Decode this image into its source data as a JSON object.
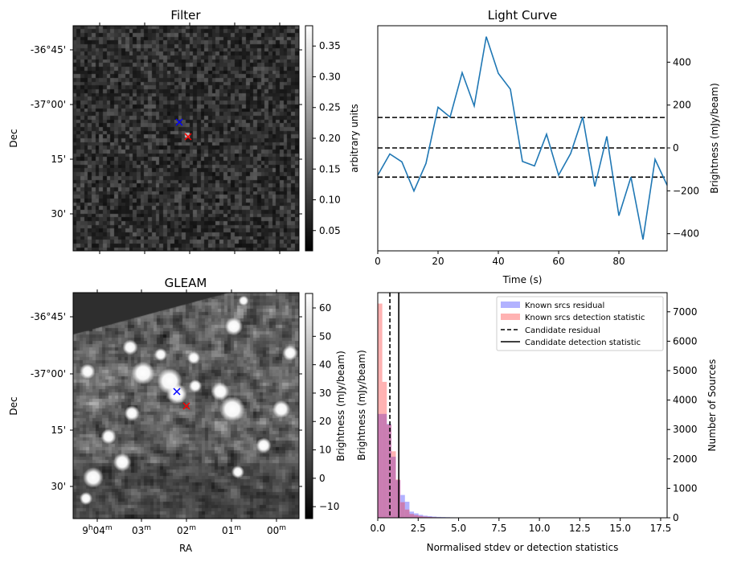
{
  "chart_data": [
    {
      "type": "heatmap",
      "title": "Filter",
      "xlabel": "",
      "ylabel": "Dec",
      "yticks": [
        "-36°45'",
        "-37°00'",
        "15'",
        "30'"
      ],
      "colorbar": {
        "label": "arbitrary units",
        "ticks": [
          "0.05",
          "0.10",
          "0.15",
          "0.20",
          "0.25",
          "0.30",
          "0.35"
        ],
        "range": [
          0.017,
          0.383
        ],
        "colormap": "gray"
      },
      "markers": [
        {
          "symbol": "x",
          "color": "#0000ff"
        },
        {
          "symbol": "x",
          "color": "#ff0000"
        }
      ]
    },
    {
      "type": "line",
      "title": "Light Curve",
      "xlabel": "Time (s)",
      "ylabel": "Brightness (mJy/beam)",
      "xlim": [
        0,
        96
      ],
      "ylim": [
        -480,
        570
      ],
      "xticks": [
        "0",
        "20",
        "40",
        "60",
        "80"
      ],
      "yticks": [
        "400",
        "200",
        "0",
        "-200",
        "-400"
      ],
      "series": [
        {
          "name": "light curve",
          "color": "#1f77b4",
          "x": [
            0,
            4,
            8,
            12,
            16,
            20,
            24,
            28,
            32,
            36,
            40,
            44,
            48,
            52,
            56,
            60,
            64,
            68,
            72,
            76,
            80,
            84,
            88,
            92,
            96
          ],
          "y": [
            -127,
            -28,
            -65,
            -201,
            -72,
            190,
            144,
            351,
            196,
            519,
            348,
            274,
            -63,
            -84,
            64,
            -127,
            -26,
            144,
            -180,
            54,
            -316,
            -136,
            -427,
            -53,
            -174
          ]
        }
      ],
      "hlines": [
        142,
        0,
        -136
      ]
    },
    {
      "type": "heatmap",
      "title": "GLEAM",
      "xlabel": "RA",
      "ylabel": "Dec",
      "xticks": [
        {
          "main": "9",
          "sup1": "h",
          "mid": "04",
          "sup2": "m"
        },
        {
          "main": "",
          "sup1": "",
          "mid": "03",
          "sup2": "m"
        },
        {
          "main": "",
          "sup1": "",
          "mid": "02",
          "sup2": "m"
        },
        {
          "main": "",
          "sup1": "",
          "mid": "01",
          "sup2": "m"
        },
        {
          "main": "",
          "sup1": "",
          "mid": "00",
          "sup2": "m"
        }
      ],
      "yticks": [
        "-36°45'",
        "-37°00'",
        "15'",
        "30'"
      ],
      "colorbar": {
        "label": "Brightness (mJy/beam)",
        "ticks": [
          "60",
          "50",
          "40",
          "30",
          "20",
          "10",
          "0",
          "−10"
        ],
        "range": [
          -14.2,
          65.1
        ],
        "colormap": "gray"
      },
      "markers": [
        {
          "symbol": "x",
          "color": "#0000ff"
        },
        {
          "symbol": "x",
          "color": "#ff0000"
        }
      ]
    },
    {
      "type": "bar",
      "title": "",
      "xlabel": "Normalised stdev or detection statistics",
      "ylabel": "Brightness (mJy/beam)",
      "ylabel_right": "Number of Sources",
      "xlim": [
        0,
        17.9
      ],
      "ylim": [
        0,
        7650
      ],
      "xticks": [
        "0.0",
        "2.5",
        "5.0",
        "7.5",
        "10.0",
        "12.5",
        "15.0",
        "17.5"
      ],
      "yticks_right": [
        "0",
        "1000",
        "2000",
        "3000",
        "4000",
        "5000",
        "6000",
        "7000"
      ],
      "bin_width": 0.28,
      "series": [
        {
          "name": "Known srcs residual",
          "color": "#0000ff",
          "alpha": 0.3,
          "values": [
            3530,
            3530,
            3190,
            2075,
            1280,
            775,
            545,
            210,
            150,
            100,
            70,
            55,
            40,
            30,
            25,
            20,
            15,
            12,
            10,
            8,
            6,
            5,
            4,
            3,
            3,
            2,
            2,
            2,
            1,
            1,
            1,
            1,
            1,
            1,
            1,
            1,
            0,
            0,
            0,
            1,
            0,
            0,
            0,
            0,
            0,
            1,
            0,
            0,
            0,
            0,
            0,
            1,
            0,
            0,
            0,
            0,
            0,
            0,
            0,
            0,
            0,
            0,
            0,
            0
          ]
        },
        {
          "name": "Known srcs detection statistic",
          "color": "#ff0000",
          "alpha": 0.3,
          "values": [
            7280,
            4620,
            3170,
            2260,
            1300,
            530,
            280,
            130,
            90,
            60,
            40,
            30,
            20,
            15,
            12,
            10,
            8,
            6,
            5,
            4,
            3,
            3,
            2,
            2,
            2,
            1,
            1,
            1,
            1,
            1,
            1,
            1,
            1,
            1,
            0,
            0,
            0,
            1,
            0,
            0,
            1,
            0,
            0,
            0,
            1,
            0,
            0,
            0,
            0,
            0,
            0,
            0,
            1,
            0,
            0,
            0,
            0,
            0,
            0,
            1
          ]
        }
      ],
      "vlines": [
        {
          "name": "Candidate residual",
          "x": 0.75,
          "style": "dashed"
        },
        {
          "name": "Candidate detection statistic",
          "x": 1.3,
          "style": "solid"
        }
      ],
      "legend": {
        "placement": "top-right",
        "entries": [
          "Known srcs residual",
          "Known srcs detection statistic",
          "Candidate residual",
          "Candidate detection statistic"
        ]
      }
    }
  ]
}
